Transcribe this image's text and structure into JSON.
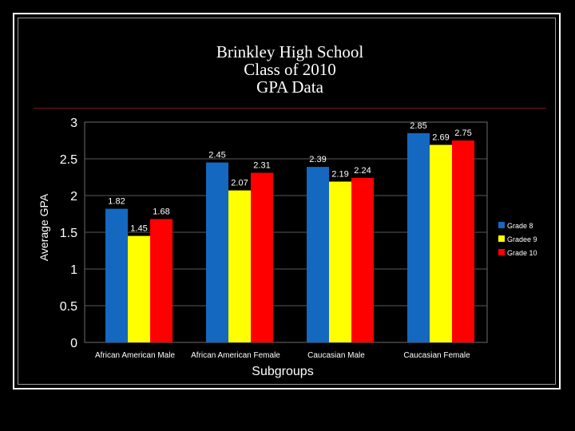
{
  "chart_data": {
    "type": "bar",
    "title_lines": [
      "Brinkley High School",
      "Class of 2010",
      "GPA Data"
    ],
    "xlabel": "Subgroups",
    "ylabel": "Average GPA",
    "ylim": [
      0,
      3
    ],
    "yticks": [
      "0",
      "0.5",
      "1",
      "1.5",
      "2",
      "2.5",
      "3"
    ],
    "grid": true,
    "legend_position": "right",
    "categories": [
      "African American Male",
      "African American Female",
      "Caucasian Male",
      "Caucasian Female"
    ],
    "series": [
      {
        "name": "Grade 8",
        "color": "#1568c0",
        "values": [
          1.82,
          2.45,
          2.39,
          2.85
        ],
        "labels": [
          "1.82",
          "2.45",
          "2.39",
          "2.85"
        ]
      },
      {
        "name": "Gradee 9",
        "color": "#ffff00",
        "values": [
          1.45,
          2.07,
          2.19,
          2.69
        ],
        "labels": [
          "1.45",
          "2.07",
          "2.19",
          "2.69"
        ]
      },
      {
        "name": "Grade 10",
        "color": "#ff0000",
        "values": [
          1.68,
          2.31,
          2.24,
          2.75
        ],
        "labels": [
          "1.68",
          "2.31",
          "2.24",
          "2.75"
        ]
      }
    ]
  }
}
